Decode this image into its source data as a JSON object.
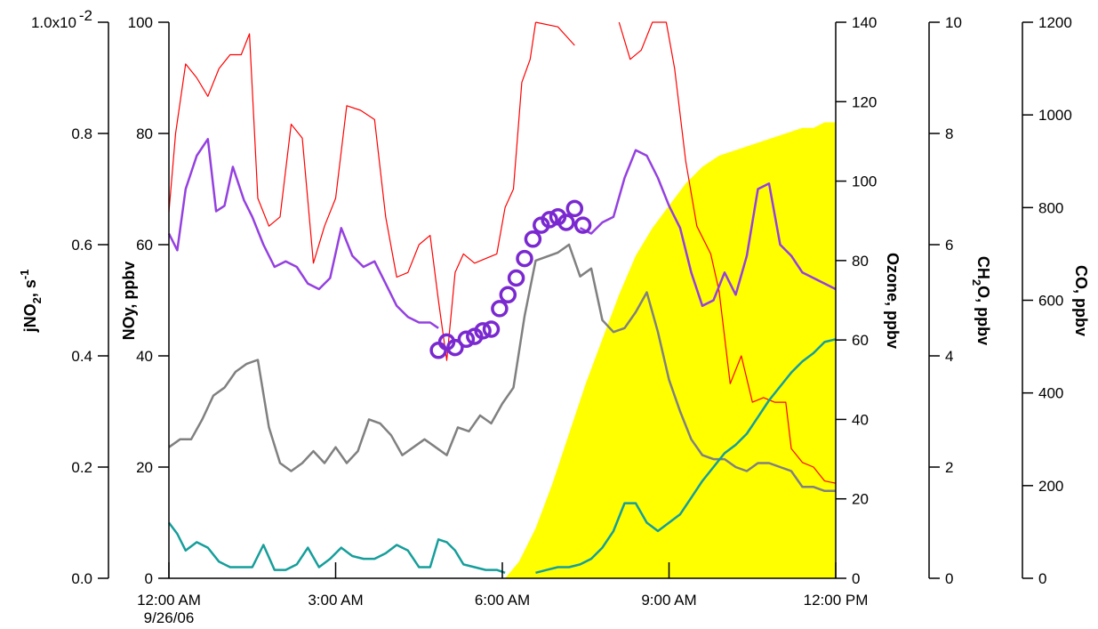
{
  "chart_data": {
    "type": "line",
    "x_axis": {
      "range": [
        0,
        12
      ],
      "ticks": [
        {
          "value": 0,
          "label": "12:00 AM",
          "sublabel": "9/26/06"
        },
        {
          "value": 3,
          "label": "3:00 AM"
        },
        {
          "value": 6,
          "label": "6:00 AM"
        },
        {
          "value": 9,
          "label": "9:00 AM"
        },
        {
          "value": 12,
          "label": "12:00 PM"
        }
      ]
    },
    "y_axes": {
      "jno2": {
        "label": "jNO2, s-1",
        "label_main": "jNO",
        "label_sub": "2",
        "label_after": ", s",
        "label_sup": "-1",
        "range": [
          0,
          0.01
        ],
        "ticks": [
          0,
          0.002,
          0.004,
          0.006,
          0.008,
          0.01
        ],
        "tick_labels": [
          "0.0",
          "0.2",
          "0.4",
          "0.6",
          "0.8",
          "1.0x10"
        ],
        "top_sup": "-2"
      },
      "noy": {
        "label": "NOy, ppbv",
        "range": [
          0,
          100
        ],
        "ticks": [
          0,
          20,
          40,
          60,
          80,
          100
        ],
        "tick_labels": [
          "0",
          "20",
          "40",
          "60",
          "80",
          "100"
        ]
      },
      "ozone": {
        "label": "Ozone, ppbv",
        "range": [
          0,
          140
        ],
        "ticks": [
          0,
          20,
          40,
          60,
          80,
          100,
          120,
          140
        ],
        "tick_labels": [
          "0",
          "20",
          "40",
          "60",
          "80",
          "100",
          "120",
          "140"
        ]
      },
      "ch2o": {
        "label": "CH2O, ppbv",
        "label_a": "CH",
        "label_sub": "2",
        "label_b": "O, ppbv",
        "range": [
          0,
          10
        ],
        "ticks": [
          0,
          2,
          4,
          6,
          8,
          10
        ],
        "tick_labels": [
          "0",
          "2",
          "4",
          "6",
          "8",
          "10"
        ]
      },
      "co": {
        "label": "CO, ppbv",
        "range": [
          0,
          1200
        ],
        "ticks": [
          0,
          200,
          400,
          600,
          800,
          1000,
          1200
        ],
        "tick_labels": [
          "0",
          "200",
          "400",
          "600",
          "800",
          "1000",
          "1200"
        ]
      }
    },
    "series": [
      {
        "id": "jno2",
        "axis": "jno2",
        "style": "area",
        "color": "#ffff00",
        "x": [
          6.05,
          6.3,
          6.6,
          6.9,
          7.2,
          7.5,
          7.8,
          8.1,
          8.4,
          8.7,
          9.0,
          9.3,
          9.6,
          9.9,
          10.2,
          10.5,
          10.8,
          11.1,
          11.4,
          11.6,
          11.8,
          12.0
        ],
        "y": [
          0.0,
          0.0003,
          0.0009,
          0.0017,
          0.0026,
          0.0035,
          0.0043,
          0.0051,
          0.0058,
          0.0063,
          0.0067,
          0.0071,
          0.0074,
          0.0076,
          0.0077,
          0.0078,
          0.0079,
          0.008,
          0.0081,
          0.0081,
          0.0082,
          0.0082
        ]
      },
      {
        "id": "co",
        "axis": "co",
        "style": "line",
        "color": "#ff0000",
        "width": 1.2,
        "x": [
          0.0,
          0.12,
          0.3,
          0.5,
          0.7,
          0.9,
          1.1,
          1.3,
          1.45,
          1.6,
          1.8,
          2.0,
          2.2,
          2.4,
          2.6,
          2.8,
          3.0,
          3.2,
          3.45,
          3.7,
          3.9,
          4.1,
          4.3,
          4.5,
          4.7,
          4.85,
          5.0,
          5.15,
          5.3,
          5.5,
          5.7,
          5.9,
          6.05,
          6.2,
          6.35,
          6.5,
          6.6
        ],
        "y": [
          790,
          960,
          1110,
          1080,
          1040,
          1100,
          1130,
          1130,
          1175,
          820,
          760,
          780,
          980,
          950,
          680,
          760,
          820,
          1020,
          1010,
          990,
          780,
          650,
          660,
          720,
          740,
          600,
          470,
          660,
          700,
          680,
          690,
          700,
          800,
          840,
          1070,
          1120,
          1200
        ]
      },
      {
        "id": "co_upper",
        "axis": "co",
        "style": "line",
        "color": "#ff0000",
        "width": 1.2,
        "x": [
          6.6,
          7.0,
          7.3
        ],
        "y": [
          1200,
          1190,
          1150
        ]
      },
      {
        "id": "co_late",
        "axis": "co",
        "style": "line",
        "color": "#ff0000",
        "width": 1.2,
        "x": [
          8.1,
          8.3,
          8.5,
          8.7,
          8.95,
          9.1,
          9.3,
          9.5,
          9.75,
          9.9,
          10.1,
          10.3,
          10.5,
          10.7,
          10.9,
          11.1,
          11.2,
          11.4,
          11.6,
          11.8,
          12.0
        ],
        "y": [
          1200,
          1120,
          1140,
          1200,
          1200,
          1100,
          900,
          760,
          700,
          620,
          420,
          480,
          380,
          390,
          380,
          380,
          280,
          250,
          240,
          210,
          205
        ]
      },
      {
        "id": "noy",
        "axis": "noy",
        "style": "line",
        "color": "#9440e0",
        "width": 2.5,
        "x": [
          0.0,
          0.15,
          0.3,
          0.5,
          0.7,
          0.85,
          1.0,
          1.15,
          1.35,
          1.5,
          1.7,
          1.9,
          2.1,
          2.3,
          2.5,
          2.7,
          2.9,
          3.1,
          3.3,
          3.5,
          3.7,
          3.9,
          4.1,
          4.3,
          4.5,
          4.7,
          4.85
        ],
        "y": [
          62,
          59,
          70,
          76,
          79,
          66,
          67,
          74,
          68,
          65,
          60,
          56,
          57,
          56,
          53,
          52,
          54,
          63,
          58,
          56,
          57,
          53,
          49,
          47,
          46,
          46,
          45
        ]
      },
      {
        "id": "noy_late",
        "axis": "noy",
        "style": "line",
        "color": "#9440e0",
        "width": 2.5,
        "x": [
          7.4,
          7.6,
          7.8,
          8.0,
          8.2,
          8.4,
          8.6,
          8.8,
          9.0,
          9.2,
          9.4,
          9.6,
          9.8,
          10.0,
          10.2,
          10.4,
          10.6,
          10.8,
          11.0,
          11.2,
          11.4,
          11.6,
          11.8,
          12.0
        ],
        "y": [
          63,
          62,
          64,
          65,
          72,
          77,
          76,
          72,
          67,
          63,
          55,
          49,
          50,
          55,
          51,
          58,
          70,
          71,
          60,
          58,
          55,
          54,
          53,
          52
        ]
      },
      {
        "id": "noy_markers",
        "axis": "noy",
        "style": "markers",
        "color": "#7a28d0",
        "x": [
          4.85,
          5.0,
          5.15,
          5.35,
          5.5,
          5.65,
          5.8,
          5.95,
          6.1,
          6.25,
          6.4,
          6.55,
          6.7,
          6.85,
          7.0,
          7.15,
          7.3,
          7.45
        ],
        "y": [
          41,
          42.5,
          41.5,
          43,
          43.5,
          44.5,
          44.8,
          48.5,
          51,
          54,
          57.5,
          61,
          63.5,
          64.5,
          65,
          64,
          66.5,
          63.5
        ]
      },
      {
        "id": "ozone",
        "axis": "ozone",
        "style": "line",
        "color": "#808080",
        "width": 2.5,
        "x": [
          0.0,
          0.2,
          0.4,
          0.6,
          0.8,
          1.0,
          1.2,
          1.4,
          1.6,
          1.8,
          2.0,
          2.2,
          2.4,
          2.6,
          2.8,
          3.0,
          3.2,
          3.4,
          3.6,
          3.8,
          4.0,
          4.2,
          4.4,
          4.6,
          4.8,
          5.0,
          5.2,
          5.4,
          5.6,
          5.8,
          6.0,
          6.2,
          6.4,
          6.6,
          6.8,
          7.0,
          7.2,
          7.4,
          7.6,
          7.8,
          8.0,
          8.2,
          8.4,
          8.6,
          8.8,
          9.0,
          9.2,
          9.4,
          9.6,
          9.8,
          10.0,
          10.2,
          10.4,
          10.6,
          10.8,
          11.0,
          11.2,
          11.4,
          11.6,
          11.8,
          12.0
        ],
        "y": [
          33,
          35,
          35,
          40,
          46,
          48,
          52,
          54,
          55,
          38,
          29,
          27,
          29,
          32,
          29,
          33,
          29,
          32,
          40,
          39,
          36,
          31,
          33,
          35,
          33,
          31,
          38,
          37,
          41,
          39,
          44,
          48,
          66,
          80,
          81,
          82,
          84,
          76,
          78,
          65,
          62,
          63,
          67,
          72,
          62,
          50,
          42,
          35,
          31,
          30,
          30,
          28,
          27,
          29,
          29,
          28,
          27,
          23,
          23,
          22,
          22
        ]
      },
      {
        "id": "ch2o",
        "axis": "ch2o",
        "style": "line",
        "color": "#159e9a",
        "width": 2.5,
        "x": [
          0.0,
          0.15,
          0.3,
          0.5,
          0.7,
          0.9,
          1.1,
          1.3,
          1.5,
          1.7,
          1.9,
          2.1,
          2.3,
          2.5,
          2.7,
          2.9,
          3.1,
          3.3,
          3.5,
          3.7,
          3.9,
          4.1,
          4.3,
          4.5,
          4.7,
          4.85,
          5.0,
          5.15,
          5.3,
          5.5,
          5.7,
          5.9,
          6.05
        ],
        "y": [
          1.0,
          0.8,
          0.5,
          0.65,
          0.55,
          0.3,
          0.2,
          0.2,
          0.2,
          0.6,
          0.15,
          0.15,
          0.25,
          0.55,
          0.2,
          0.35,
          0.55,
          0.4,
          0.35,
          0.35,
          0.45,
          0.6,
          0.5,
          0.2,
          0.2,
          0.7,
          0.65,
          0.5,
          0.25,
          0.2,
          0.15,
          0.15,
          0.1
        ]
      },
      {
        "id": "ch2o_late",
        "axis": "ch2o",
        "style": "line",
        "color": "#159e9a",
        "width": 2.5,
        "x": [
          6.6,
          6.8,
          7.0,
          7.2,
          7.4,
          7.6,
          7.8,
          8.0,
          8.2,
          8.4,
          8.6,
          8.8,
          9.0,
          9.2,
          9.4,
          9.6,
          9.8,
          10.0,
          10.2,
          10.4,
          10.6,
          10.8,
          11.0,
          11.2,
          11.4,
          11.6,
          11.8,
          12.0
        ],
        "y": [
          0.1,
          0.15,
          0.2,
          0.2,
          0.25,
          0.35,
          0.55,
          0.85,
          1.35,
          1.35,
          1.0,
          0.85,
          1.0,
          1.15,
          1.45,
          1.75,
          2.0,
          2.25,
          2.4,
          2.6,
          2.9,
          3.2,
          3.45,
          3.7,
          3.9,
          4.05,
          4.25,
          4.3
        ]
      }
    ]
  }
}
